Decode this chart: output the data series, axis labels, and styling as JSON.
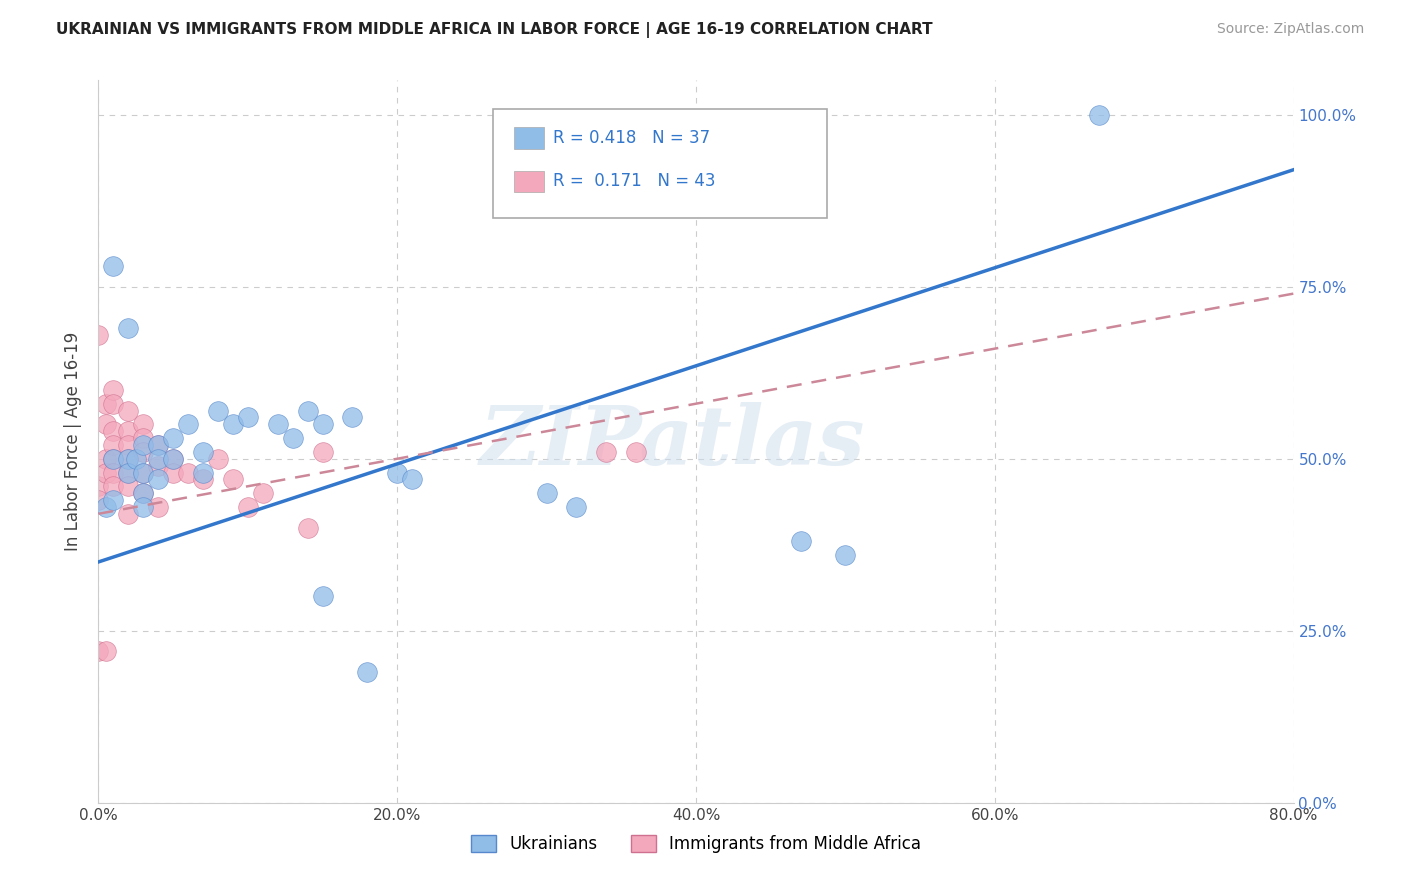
{
  "title": "UKRAINIAN VS IMMIGRANTS FROM MIDDLE AFRICA IN LABOR FORCE | AGE 16-19 CORRELATION CHART",
  "source": "Source: ZipAtlas.com",
  "ylabel": "In Labor Force | Age 16-19",
  "xlim": [
    0.0,
    0.8
  ],
  "ylim": [
    0.0,
    1.05
  ],
  "xlabel_ticks": [
    0.0,
    0.2,
    0.4,
    0.6,
    0.8
  ],
  "xlabel_labels": [
    "0.0%",
    "20.0%",
    "40.0%",
    "60.0%",
    "80.0%"
  ],
  "ylabel_ticks": [
    0.0,
    0.25,
    0.5,
    0.75,
    1.0
  ],
  "ylabel_labels": [
    "0.0%",
    "25.0%",
    "50.0%",
    "75.0%",
    "100.0%"
  ],
  "stat_box": {
    "blue_R": "0.418",
    "blue_N": "37",
    "pink_R": "0.171",
    "pink_N": "43"
  },
  "blue_scatter": [
    [
      0.005,
      0.43
    ],
    [
      0.01,
      0.78
    ],
    [
      0.01,
      0.5
    ],
    [
      0.01,
      0.44
    ],
    [
      0.02,
      0.69
    ],
    [
      0.02,
      0.5
    ],
    [
      0.02,
      0.48
    ],
    [
      0.025,
      0.5
    ],
    [
      0.03,
      0.52
    ],
    [
      0.03,
      0.48
    ],
    [
      0.03,
      0.45
    ],
    [
      0.03,
      0.43
    ],
    [
      0.04,
      0.52
    ],
    [
      0.04,
      0.5
    ],
    [
      0.04,
      0.47
    ],
    [
      0.05,
      0.53
    ],
    [
      0.05,
      0.5
    ],
    [
      0.06,
      0.55
    ],
    [
      0.07,
      0.51
    ],
    [
      0.07,
      0.48
    ],
    [
      0.08,
      0.57
    ],
    [
      0.09,
      0.55
    ],
    [
      0.1,
      0.56
    ],
    [
      0.12,
      0.55
    ],
    [
      0.13,
      0.53
    ],
    [
      0.14,
      0.57
    ],
    [
      0.15,
      0.55
    ],
    [
      0.15,
      0.3
    ],
    [
      0.17,
      0.56
    ],
    [
      0.18,
      0.19
    ],
    [
      0.2,
      0.48
    ],
    [
      0.21,
      0.47
    ],
    [
      0.3,
      0.45
    ],
    [
      0.32,
      0.43
    ],
    [
      0.47,
      0.38
    ],
    [
      0.5,
      0.36
    ],
    [
      0.67,
      1.0
    ]
  ],
  "pink_scatter": [
    [
      0.0,
      0.46
    ],
    [
      0.0,
      0.44
    ],
    [
      0.005,
      0.5
    ],
    [
      0.005,
      0.48
    ],
    [
      0.005,
      0.58
    ],
    [
      0.005,
      0.55
    ],
    [
      0.01,
      0.6
    ],
    [
      0.01,
      0.58
    ],
    [
      0.01,
      0.54
    ],
    [
      0.01,
      0.52
    ],
    [
      0.01,
      0.5
    ],
    [
      0.01,
      0.48
    ],
    [
      0.01,
      0.46
    ],
    [
      0.02,
      0.57
    ],
    [
      0.02,
      0.54
    ],
    [
      0.02,
      0.52
    ],
    [
      0.02,
      0.5
    ],
    [
      0.02,
      0.48
    ],
    [
      0.02,
      0.46
    ],
    [
      0.02,
      0.42
    ],
    [
      0.03,
      0.55
    ],
    [
      0.03,
      0.53
    ],
    [
      0.03,
      0.51
    ],
    [
      0.03,
      0.48
    ],
    [
      0.03,
      0.45
    ],
    [
      0.04,
      0.52
    ],
    [
      0.04,
      0.49
    ],
    [
      0.04,
      0.43
    ],
    [
      0.05,
      0.5
    ],
    [
      0.05,
      0.48
    ],
    [
      0.06,
      0.48
    ],
    [
      0.07,
      0.47
    ],
    [
      0.08,
      0.5
    ],
    [
      0.09,
      0.47
    ],
    [
      0.1,
      0.43
    ],
    [
      0.11,
      0.45
    ],
    [
      0.14,
      0.4
    ],
    [
      0.15,
      0.51
    ],
    [
      0.0,
      0.22
    ],
    [
      0.005,
      0.22
    ],
    [
      0.34,
      0.51
    ],
    [
      0.36,
      0.51
    ],
    [
      0.0,
      0.68
    ]
  ],
  "blue_line": {
    "x0": 0.0,
    "y0": 0.35,
    "x1": 0.8,
    "y1": 0.92
  },
  "pink_line": {
    "x0": 0.0,
    "y0": 0.42,
    "x1": 0.8,
    "y1": 0.74
  },
  "blue_scatter_color": "#90bce8",
  "blue_scatter_edge": "#5588cc",
  "pink_scatter_color": "#f4a8bc",
  "pink_scatter_edge": "#d07090",
  "blue_line_color": "#3377cc",
  "pink_line_color": "#cc8899",
  "watermark_text": "ZIPatlas",
  "background_color": "#ffffff",
  "grid_color": "#cccccc"
}
